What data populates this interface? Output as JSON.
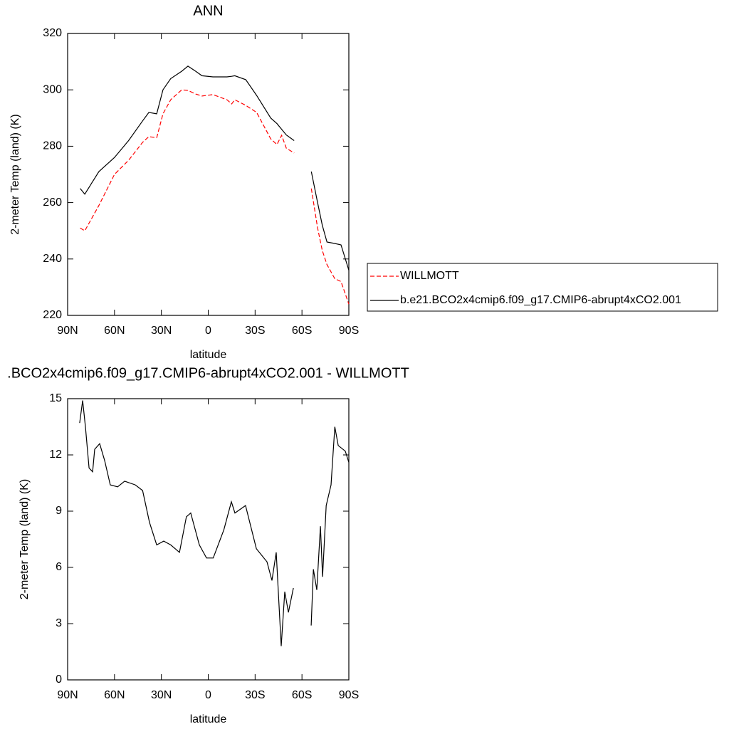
{
  "chart_data": [
    {
      "type": "line",
      "title": "ANN",
      "xlabel": "latitude",
      "ylabel": "2-meter Temp (land) (K)",
      "x": [
        82,
        79,
        70,
        60,
        51,
        42,
        38,
        33,
        29,
        24,
        17,
        13,
        8,
        4,
        -3,
        -12,
        -15,
        -17,
        -24,
        -31,
        -40,
        -44,
        -47,
        -50,
        -55,
        -60,
        -66,
        -70,
        -73,
        -76,
        -81,
        -85,
        -90
      ],
      "series": [
        {
          "name": "WILLMOTT",
          "color": "#ff0000",
          "line_style": "dashed",
          "values": [
            251,
            250,
            259,
            270,
            275,
            281.4,
            283.4,
            283,
            291.5,
            296.5,
            300,
            299.8,
            298.5,
            297.8,
            298.3,
            296.5,
            295,
            296.5,
            294.5,
            292,
            282.6,
            280.6,
            283.9,
            279.3,
            277.6,
            null,
            265,
            251,
            243,
            238,
            233,
            232,
            224
          ]
        },
        {
          "name": "b.e21.BCO2x4cmip6.f09_g17.CMIP6-abrupt4xCO2.001",
          "color": "#000000",
          "line_style": "solid",
          "values": [
            265,
            263,
            271,
            276,
            282,
            289,
            292,
            291.5,
            300,
            304,
            306.6,
            308.4,
            306.6,
            305,
            304.6,
            304.6,
            304.8,
            305,
            303.6,
            298,
            290,
            288,
            286,
            284,
            282,
            null,
            271,
            260,
            252,
            246,
            245.5,
            245,
            236
          ]
        }
      ],
      "xlim": [
        90,
        -90
      ],
      "xticks": [
        {
          "value": 90,
          "label": "90N"
        },
        {
          "value": 60,
          "label": "60N"
        },
        {
          "value": 30,
          "label": "30N"
        },
        0,
        {
          "value": -30,
          "label": "30S"
        },
        {
          "value": -60,
          "label": "60S"
        },
        {
          "value": -90,
          "label": "90S"
        }
      ],
      "ylim": [
        220,
        320
      ],
      "yticks": [
        220,
        240,
        260,
        280,
        300,
        320
      ],
      "legend": "right",
      "grid": false
    },
    {
      "type": "line",
      "title": ".BCO2x4cmip6.f09_g17.CMIP6-abrupt4xCO2.001 - WILLMOTT",
      "xlabel": "latitude",
      "ylabel": "2-meter Temp (land) (K)",
      "x": [
        82.3,
        80.4,
        78.6,
        76.3,
        74,
        72.7,
        69.5,
        66.3,
        62.7,
        58,
        53.5,
        46.7,
        42,
        37.6,
        33,
        28.5,
        24,
        18.4,
        14,
        11.2,
        5.7,
        1.1,
        -3.2,
        -10,
        -14.8,
        -17.1,
        -23.9,
        -30.8,
        -37.6,
        -40.8,
        -43.5,
        -46.7,
        -49,
        -51.3,
        -54.5,
        -60,
        -65.9,
        -67.3,
        -69.5,
        -71.8,
        -73.2,
        -75.5,
        -78.6,
        -81,
        -83.2,
        -87.7,
        -90
      ],
      "series": [
        {
          "color": "#000000",
          "line_style": "solid",
          "values": [
            13.7,
            14.9,
            13.5,
            11.3,
            11.1,
            12.3,
            12.6,
            11.7,
            10.4,
            10.3,
            10.6,
            10.4,
            10.1,
            8.4,
            7.2,
            7.4,
            7.2,
            6.8,
            8.7,
            8.9,
            7.2,
            6.5,
            6.5,
            8.0,
            9.5,
            8.9,
            9.3,
            7.0,
            6.3,
            5.3,
            6.8,
            1.8,
            4.7,
            3.6,
            4.9,
            null,
            2.9,
            5.9,
            4.8,
            8.2,
            5.5,
            9.3,
            10.4,
            13.5,
            12.5,
            12.2,
            11.6
          ]
        }
      ],
      "xlim": [
        90,
        -90
      ],
      "xticks": [
        {
          "value": 90,
          "label": "90N"
        },
        {
          "value": 60,
          "label": "60N"
        },
        {
          "value": 30,
          "label": "30N"
        },
        0,
        {
          "value": -30,
          "label": "30S"
        },
        {
          "value": -60,
          "label": "60S"
        },
        {
          "value": -90,
          "label": "90S"
        }
      ],
      "ylim": [
        0,
        15
      ],
      "yticks": [
        0,
        3,
        6,
        9,
        12,
        15
      ],
      "grid": false
    }
  ]
}
